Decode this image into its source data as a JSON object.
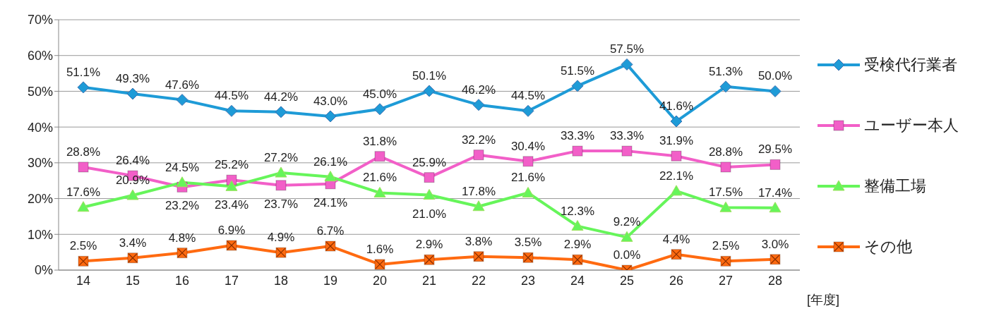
{
  "chart_data": {
    "type": "line",
    "categories": [
      "14",
      "15",
      "16",
      "17",
      "18",
      "19",
      "20",
      "21",
      "22",
      "23",
      "24",
      "25",
      "26",
      "27",
      "28"
    ],
    "xlabel": "[年度]",
    "ylim": [
      0,
      70
    ],
    "yticks": [
      {
        "value": 0,
        "label": "0%"
      },
      {
        "value": 10,
        "label": "10%"
      },
      {
        "value": 20,
        "label": "20%"
      },
      {
        "value": 30,
        "label": "30%"
      },
      {
        "value": 40,
        "label": "40%"
      },
      {
        "value": 50,
        "label": "50%"
      },
      {
        "value": 60,
        "label": "60%"
      },
      {
        "value": 70,
        "label": "70%"
      }
    ],
    "grid": "y",
    "legend": "right",
    "series": [
      {
        "name": "受検代行業者",
        "color": "#1e9bd7",
        "marker": "diamond",
        "values": [
          51.1,
          49.3,
          47.6,
          44.5,
          44.2,
          43.0,
          45.0,
          50.1,
          46.2,
          44.5,
          51.5,
          57.5,
          41.6,
          51.3,
          50.0
        ],
        "value_labels": [
          "51.1%",
          "49.3%",
          "47.6%",
          "44.5%",
          "44.2%",
          "43.0%",
          "45.0%",
          "50.1%",
          "46.2%",
          "44.5%",
          "51.5%",
          "57.5%",
          "41.6%",
          "51.3%",
          "50.0%"
        ]
      },
      {
        "name": "ユーザー本人",
        "color": "#f25fc8",
        "marker": "square",
        "values": [
          28.8,
          26.4,
          23.2,
          25.2,
          23.7,
          24.1,
          31.8,
          25.9,
          32.2,
          30.4,
          33.3,
          33.3,
          31.9,
          28.8,
          29.5
        ],
        "value_labels": [
          "28.8%",
          "26.4%",
          "23.2%",
          "25.2%",
          "23.7%",
          "24.1%",
          "31.8%",
          "25.9%",
          "32.2%",
          "30.4%",
          "33.3%",
          "33.3%",
          "31.9%",
          "28.8%",
          "29.5%"
        ]
      },
      {
        "name": "整備工場",
        "color": "#66f55a",
        "marker": "triangle",
        "values": [
          17.6,
          20.9,
          24.5,
          23.4,
          27.2,
          26.1,
          21.6,
          21.0,
          17.8,
          21.6,
          12.3,
          9.2,
          22.1,
          17.5,
          17.4
        ],
        "value_labels": [
          "17.6%",
          "20.9%",
          "24.5%",
          "23.4%",
          "27.2%",
          "26.1%",
          "21.6%",
          "21.0%",
          "17.8%",
          "21.6%",
          "12.3%",
          "9.2%",
          "22.1%",
          "17.5%",
          "17.4%"
        ]
      },
      {
        "name": "その他",
        "color": "#ff6a10",
        "marker": "square",
        "values": [
          2.5,
          3.4,
          4.8,
          6.9,
          4.9,
          6.7,
          1.6,
          2.9,
          3.8,
          3.5,
          2.9,
          0.0,
          4.4,
          2.5,
          3.0
        ],
        "value_labels": [
          "2.5%",
          "3.4%",
          "4.8%",
          "6.9%",
          "4.9%",
          "6.7%",
          "1.6%",
          "2.9%",
          "3.8%",
          "3.5%",
          "2.9%",
          "0.0%",
          "4.4%",
          "2.5%",
          "3.0%"
        ]
      }
    ]
  }
}
